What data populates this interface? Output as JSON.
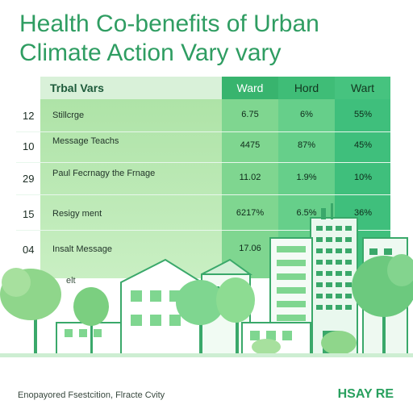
{
  "title_line1": "Health Co-benefits of Urban",
  "title_line2": "Climate Action Vary vary",
  "table": {
    "header_label": "Trbal Vars",
    "col_headers": [
      "Ward",
      "Hord",
      "Wart"
    ],
    "rows": [
      {
        "num": "12",
        "label": "Stillcrge",
        "vals": [
          "6.75",
          "6%",
          "55%"
        ]
      },
      {
        "num": "10",
        "label": "Message Teachs",
        "vals": [
          "4475",
          "87%",
          "45%"
        ]
      },
      {
        "num": "29",
        "label": "Paul Fecrnagy the Frnage",
        "vals": [
          "11.02",
          "1.9%",
          "10%"
        ]
      },
      {
        "num": "15",
        "label": "Resigy ment",
        "vals": [
          "6217%",
          "6.5%",
          "36%"
        ]
      },
      {
        "num": "04",
        "label": "Insalt Message",
        "vals": [
          "17.06",
          "",
          ""
        ]
      }
    ],
    "partial_label": "elt"
  },
  "footer": {
    "left": "Enopayored Fsestcition, Flracte Cvity",
    "right": "HSAY RE"
  },
  "colors": {
    "primary_green": "#2f9d62",
    "light_green": "#aee3a7",
    "mid_green": "#66cf8a",
    "dark_green": "#3fbf7c"
  }
}
